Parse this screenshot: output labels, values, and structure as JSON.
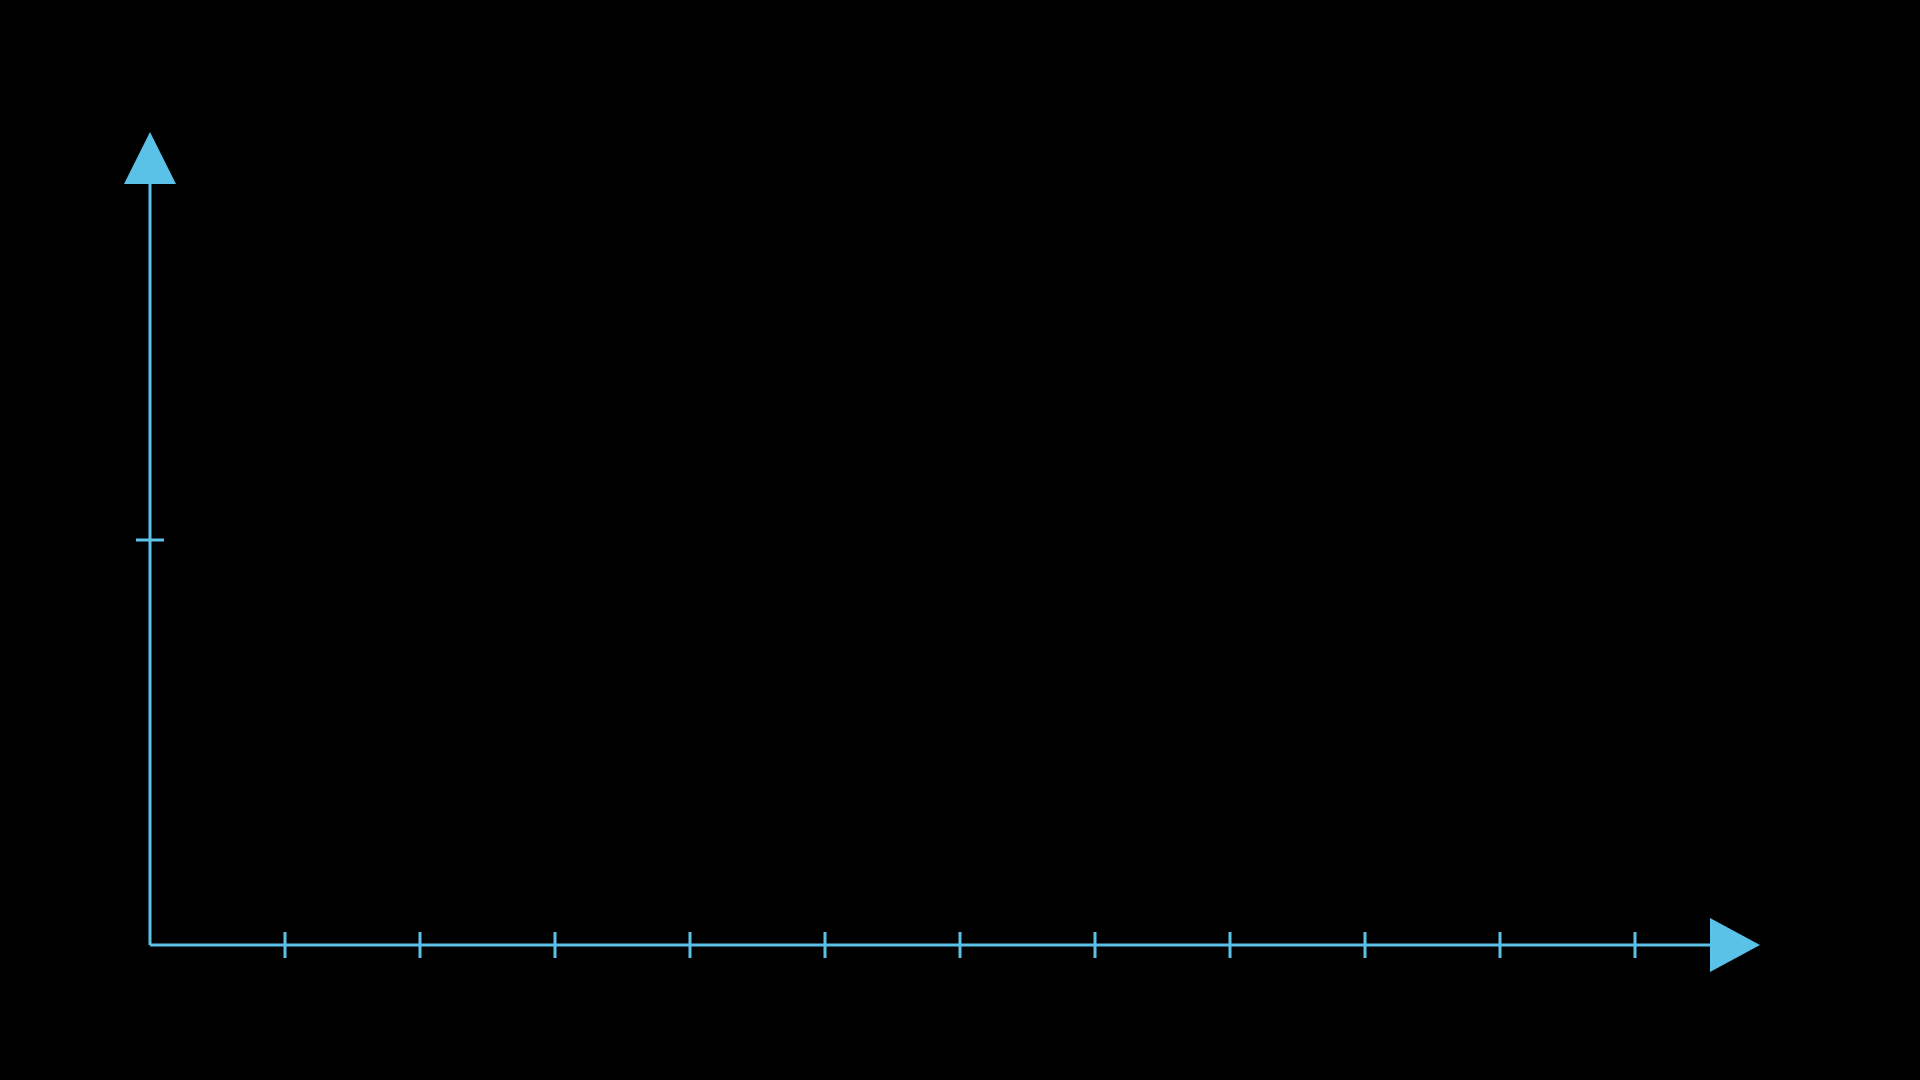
{
  "chart_data": {
    "type": "line",
    "title": "",
    "xlabel": "",
    "ylabel": "",
    "xlim": [
      0,
      11
    ],
    "ylim": [
      0,
      2
    ],
    "x_ticks": [
      1,
      2,
      3,
      4,
      5,
      6,
      7,
      8,
      9,
      10,
      11
    ],
    "y_ticks": [
      1
    ],
    "x_tick_labels": [],
    "y_tick_labels": [],
    "series": [],
    "grid": false,
    "background": "#000000",
    "axis_color": "#5bc2e7"
  }
}
